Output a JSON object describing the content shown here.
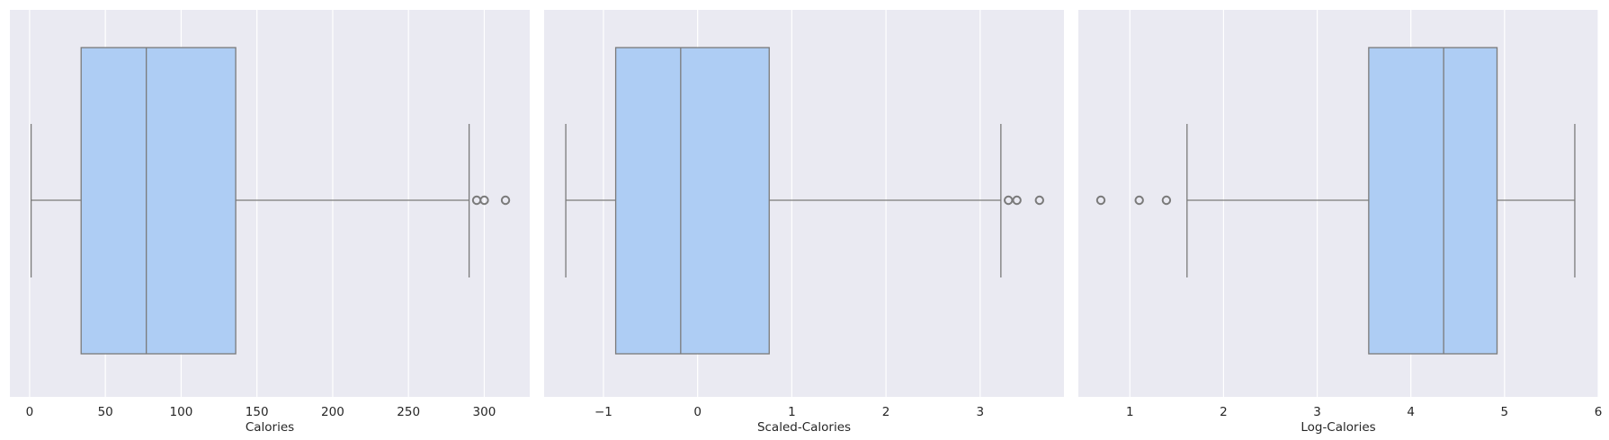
{
  "colors": {
    "plot_background": "#eaeaf2",
    "grid": "#ffffff",
    "box_fill": "#aecdf4",
    "line": "#7a7a7a",
    "text": "#262626"
  },
  "chart_data": [
    {
      "type": "box",
      "orient": "horizontal",
      "xlabel": "Calories",
      "xlim": [
        -13,
        330
      ],
      "ticks": [
        0,
        50,
        100,
        150,
        200,
        250,
        300
      ],
      "tick_labels": [
        "0",
        "50",
        "100",
        "150",
        "200",
        "250",
        "300"
      ],
      "grid": true,
      "box": {
        "whisker_low": 1,
        "q1": 34,
        "median": 77,
        "q3": 136,
        "whisker_high": 290
      },
      "outliers": [
        295,
        300,
        314
      ]
    },
    {
      "type": "box",
      "orient": "horizontal",
      "xlabel": "Scaled-Calories",
      "xlim": [
        -1.63,
        3.89
      ],
      "ticks": [
        -1,
        0,
        1,
        2,
        3
      ],
      "tick_labels": [
        "−1",
        "0",
        "1",
        "2",
        "3"
      ],
      "grid": true,
      "box": {
        "whisker_low": -1.4,
        "q1": -0.87,
        "median": -0.18,
        "q3": 0.76,
        "whisker_high": 3.22
      },
      "outliers": [
        3.3,
        3.39,
        3.63
      ]
    },
    {
      "type": "box",
      "orient": "horizontal",
      "xlabel": "Log-Calories",
      "xlim": [
        0.45,
        6.0
      ],
      "ticks": [
        1,
        2,
        3,
        4,
        5,
        6
      ],
      "tick_labels": [
        "1",
        "2",
        "3",
        "4",
        "5",
        "6"
      ],
      "grid": true,
      "box": {
        "whisker_low": 1.61,
        "q1": 3.55,
        "median": 4.35,
        "q3": 4.92,
        "whisker_high": 5.75
      },
      "outliers": [
        0.69,
        1.1,
        1.39
      ]
    }
  ]
}
